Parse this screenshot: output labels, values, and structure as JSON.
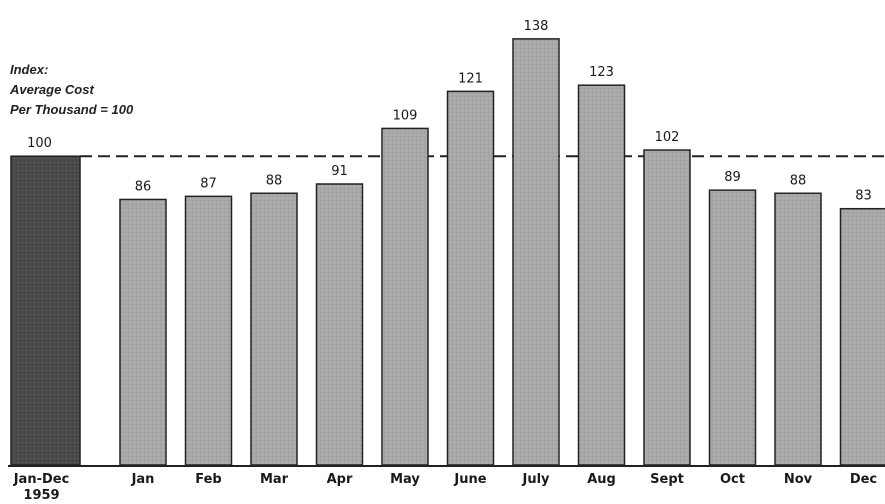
{
  "chart_data": {
    "type": "bar",
    "ylabel": [
      "Index:",
      "Average Cost",
      "Per Thousand = 100"
    ],
    "baseline": {
      "category": "Jan-Dec",
      "sublabel": "1959",
      "value": 100,
      "color": "#4a4a4a"
    },
    "categories": [
      "Jan",
      "Feb",
      "Mar",
      "Apr",
      "May",
      "June",
      "July",
      "Aug",
      "Sept",
      "Oct",
      "Nov",
      "Dec"
    ],
    "values": [
      86,
      87,
      88,
      91,
      109,
      121,
      138,
      123,
      102,
      89,
      88,
      83
    ],
    "bar_color": "#a8a8a8",
    "reference_line": 100,
    "ylim": [
      0,
      140
    ],
    "grid": false
  }
}
